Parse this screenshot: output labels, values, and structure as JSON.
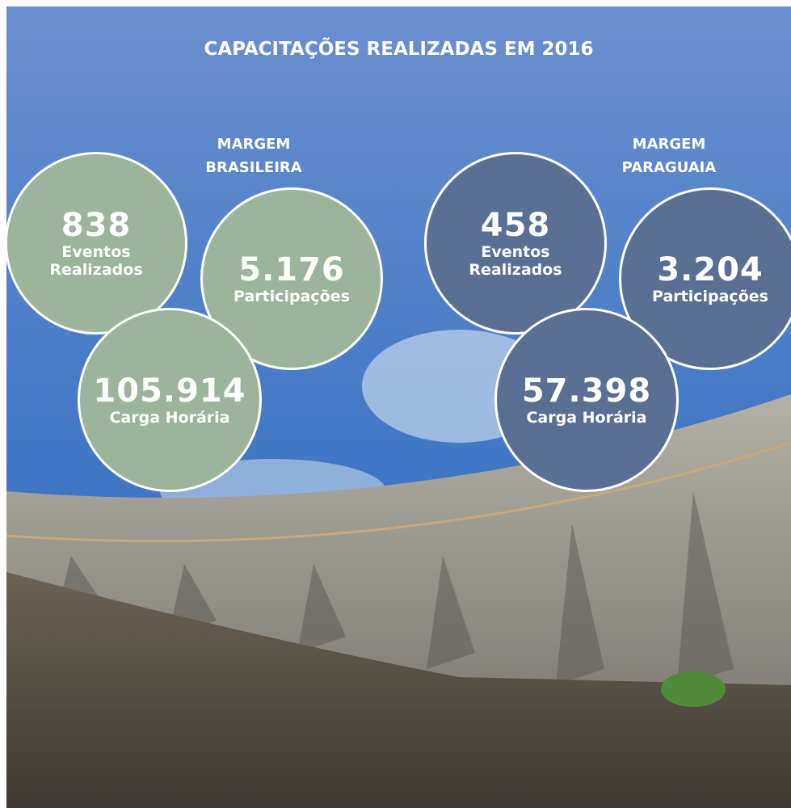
{
  "title": "CAPACITAÇÕES REALIZADAS EM 2016",
  "sections": [
    {
      "heading": "MARGEM BRASILEIRA",
      "stats": [
        {
          "value": "838",
          "label": "Eventos Realizados"
        },
        {
          "value": "5.176",
          "label": "Participações"
        },
        {
          "value": "105.914",
          "label": "Carga Horária"
        }
      ]
    },
    {
      "heading": "MARGEM PARAGUAIA",
      "stats": [
        {
          "value": "458",
          "label": "Eventos Realizados"
        },
        {
          "value": "3.204",
          "label": "Participações"
        },
        {
          "value": "57.398",
          "label": "Carga Horária"
        }
      ]
    }
  ]
}
